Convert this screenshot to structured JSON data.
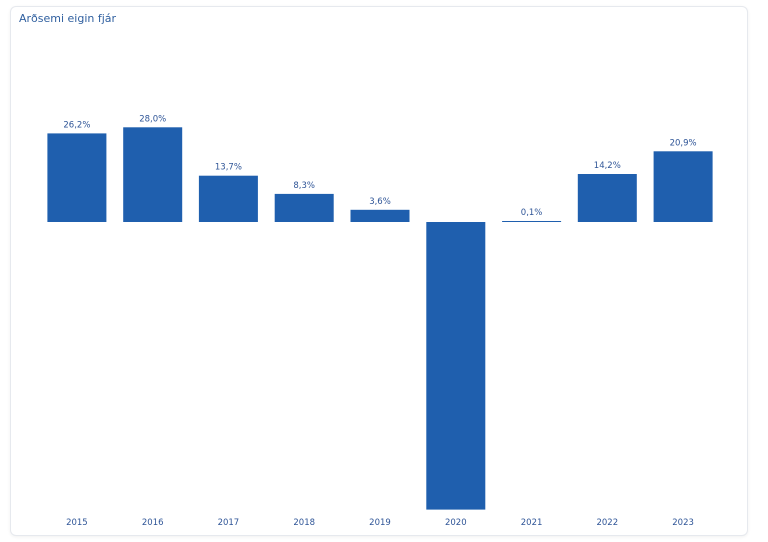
{
  "chart_data": {
    "type": "bar",
    "title": "Arðsemi eigin fjár",
    "xlabel": "",
    "ylabel": "",
    "categories": [
      "2015",
      "2016",
      "2017",
      "2018",
      "2019",
      "2020",
      "2021",
      "2022",
      "2023"
    ],
    "values": [
      26.2,
      28.0,
      13.7,
      8.3,
      3.6,
      -85.0,
      0.1,
      14.2,
      20.9
    ],
    "value_labels": [
      "26,2%",
      "28,0%",
      "13,7%",
      "8,3%",
      "3,6%",
      "",
      "0,1%",
      "14,2%",
      "20,9%"
    ],
    "ylim": [
      -85,
      30
    ],
    "grid": false,
    "bar_color": "#1f5fae"
  }
}
